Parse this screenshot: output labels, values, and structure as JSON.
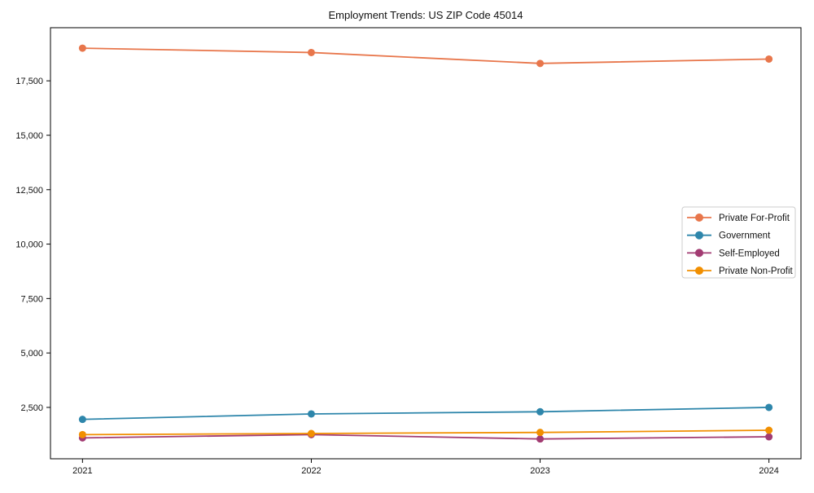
{
  "title": "Employment Trends: US ZIP Code 45014",
  "chart_data": {
    "type": "line",
    "title": "Employment Trends: US ZIP Code 45014",
    "xlabel": "",
    "ylabel": "",
    "x": [
      2021,
      2022,
      2023,
      2024
    ],
    "x_tick_labels": [
      "2021",
      "2022",
      "2023",
      "2024"
    ],
    "series": [
      {
        "name": "Private For-Profit",
        "color": "#E8764B",
        "values": [
          19000,
          18800,
          18300,
          18500
        ]
      },
      {
        "name": "Government",
        "color": "#2E86AB",
        "values": [
          1950,
          2200,
          2300,
          2500
        ]
      },
      {
        "name": "Self-Employed",
        "color": "#A23B72",
        "values": [
          1100,
          1250,
          1050,
          1150
        ]
      },
      {
        "name": "Private Non-Profit",
        "color": "#F18F01",
        "values": [
          1250,
          1300,
          1350,
          1450
        ]
      }
    ],
    "y_ticks": [
      {
        "value": 2500,
        "label": "2,500"
      },
      {
        "value": 5000,
        "label": "5,000"
      },
      {
        "value": 7500,
        "label": "7,500"
      },
      {
        "value": 10000,
        "label": "10,000"
      },
      {
        "value": 12500,
        "label": "12,500"
      },
      {
        "value": 15000,
        "label": "15,000"
      },
      {
        "value": 17500,
        "label": "17,500"
      }
    ],
    "ylim": [
      140,
      19940
    ],
    "xlim": [
      2020.86,
      2024.14
    ],
    "grid": false,
    "marker": "circle",
    "legend_position": "center right",
    "colors": {
      "spine": "#000000",
      "tick": "#000000",
      "legend_border": "#cccccc",
      "background": "#ffffff"
    }
  }
}
